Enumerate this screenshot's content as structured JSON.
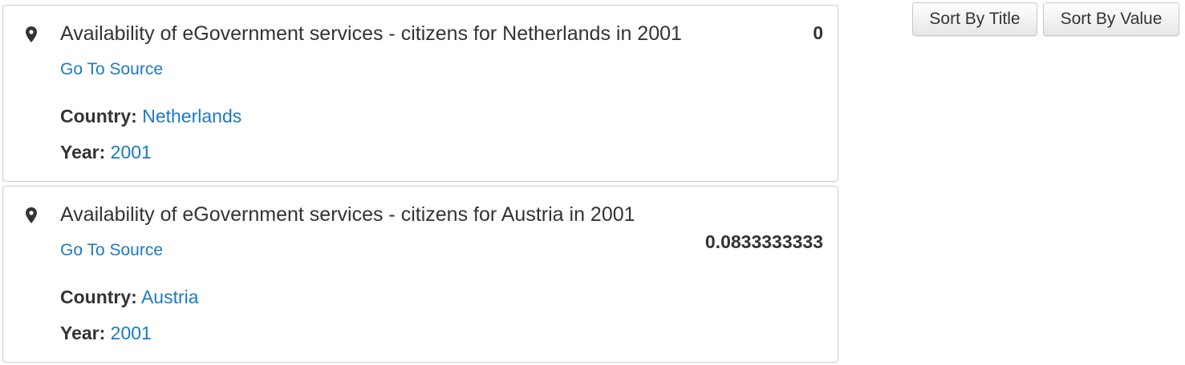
{
  "sort": {
    "by_title_label": "Sort By Title",
    "by_value_label": "Sort By Value"
  },
  "results": [
    {
      "title": "Availability of eGovernment services - citizens for Netherlands in 2001",
      "value": "0",
      "source_label": "Go To Source",
      "country_label": "Country:",
      "country": "Netherlands",
      "year_label": "Year:",
      "year": "2001"
    },
    {
      "title": "Availability of eGovernment services - citizens for Austria in 2001",
      "value": "0.0833333333",
      "source_label": "Go To Source",
      "country_label": "Country:",
      "country": "Austria",
      "year_label": "Year:",
      "year": "2001"
    }
  ],
  "icons": {
    "location": "map-marker-icon"
  },
  "colors": {
    "link": "#1a7bc4",
    "text": "#333333",
    "border": "#cccccc"
  }
}
